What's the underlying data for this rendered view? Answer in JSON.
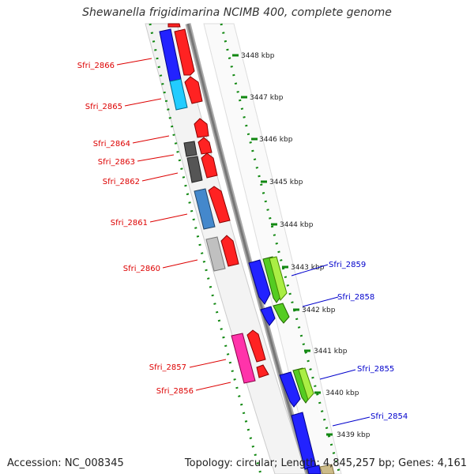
{
  "title": "Shewanella frigidimarina NCIMB 400, complete genome",
  "footer": {
    "accession": "Accession: NC_008345",
    "topology": "Topology: circular; Length: 4,845,257 bp; Genes: 4,161"
  },
  "colors": {
    "forward_label": "#dd0000",
    "reverse_label": "#0000cc",
    "backbone": "#888888",
    "tick": "#118811"
  },
  "scale_labels": [
    "3448 kbp",
    "3447 kbp",
    "3446 kbp",
    "3445 kbp",
    "3444 kbp",
    "3443 kbp",
    "3442 kbp",
    "3441 kbp",
    "3440 kbp",
    "3439 kbp"
  ],
  "gene_labels_left": [
    "Sfri_2866",
    "Sfri_2865",
    "Sfri_2864",
    "Sfri_2863",
    "Sfri_2862",
    "Sfri_2861",
    "Sfri_2860",
    "Sfri_2857",
    "Sfri_2856"
  ],
  "gene_labels_right": [
    "Sfri_2859",
    "Sfri_2858",
    "Sfri_2855",
    "Sfri_2854"
  ]
}
